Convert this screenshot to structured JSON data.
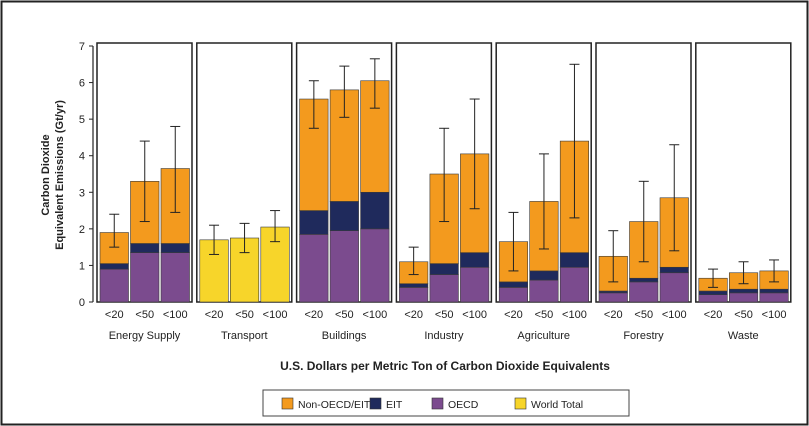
{
  "chart_data": {
    "type": "bar",
    "stacked": true,
    "ylabel_lines": [
      "Carbon Dioxide",
      "Equivalent Emissions (Gt/yr)"
    ],
    "xlabel": "U.S. Dollars per Metric Ton of Carbon Dioxide Equivalents",
    "ylim": [
      0,
      7
    ],
    "yticks": [
      "0",
      "1",
      "2",
      "3",
      "4",
      "5",
      "6",
      "7"
    ],
    "categories": [
      "<20",
      "<50",
      "<100"
    ],
    "legend": [
      {
        "key": "non_oecd",
        "label": "Non-OECD/EIT",
        "color": "#F39A1E"
      },
      {
        "key": "eit",
        "label": "EIT",
        "color": "#1F2A5C"
      },
      {
        "key": "oecd",
        "label": "OECD",
        "color": "#7B4B8E"
      },
      {
        "key": "world",
        "label": "World Total",
        "color": "#F7D52A"
      }
    ],
    "sectors": [
      {
        "name": "Energy Supply",
        "bars": [
          {
            "oecd": 0.9,
            "eit": 0.15,
            "non_oecd": 0.85,
            "total": 1.9,
            "err": [
              1.5,
              2.4
            ]
          },
          {
            "oecd": 1.35,
            "eit": 0.25,
            "non_oecd": 1.7,
            "total": 3.3,
            "err": [
              2.2,
              4.4
            ]
          },
          {
            "oecd": 1.35,
            "eit": 0.25,
            "non_oecd": 2.05,
            "total": 3.65,
            "err": [
              2.45,
              4.8
            ]
          }
        ]
      },
      {
        "name": "Transport",
        "bars": [
          {
            "world": 1.7,
            "total": 1.7,
            "err": [
              1.3,
              2.1
            ]
          },
          {
            "world": 1.75,
            "total": 1.75,
            "err": [
              1.35,
              2.15
            ]
          },
          {
            "world": 2.05,
            "total": 2.05,
            "err": [
              1.65,
              2.5
            ]
          }
        ]
      },
      {
        "name": "Buildings",
        "bars": [
          {
            "oecd": 1.85,
            "eit": 0.65,
            "non_oecd": 3.05,
            "total": 5.55,
            "err": [
              4.75,
              6.05
            ]
          },
          {
            "oecd": 1.95,
            "eit": 0.8,
            "non_oecd": 3.05,
            "total": 5.8,
            "err": [
              5.05,
              6.45
            ]
          },
          {
            "oecd": 2.0,
            "eit": 1.0,
            "non_oecd": 3.05,
            "total": 6.05,
            "err": [
              5.3,
              6.65
            ]
          }
        ]
      },
      {
        "name": "Industry",
        "bars": [
          {
            "oecd": 0.4,
            "eit": 0.1,
            "non_oecd": 0.6,
            "total": 1.1,
            "err": [
              0.75,
              1.5
            ]
          },
          {
            "oecd": 0.75,
            "eit": 0.3,
            "non_oecd": 2.45,
            "total": 3.5,
            "err": [
              2.2,
              4.75
            ]
          },
          {
            "oecd": 0.95,
            "eit": 0.4,
            "non_oecd": 2.7,
            "total": 4.05,
            "err": [
              2.55,
              5.55
            ]
          }
        ]
      },
      {
        "name": "Agriculture",
        "bars": [
          {
            "oecd": 0.4,
            "eit": 0.15,
            "non_oecd": 1.1,
            "total": 1.65,
            "err": [
              0.85,
              2.45
            ]
          },
          {
            "oecd": 0.6,
            "eit": 0.25,
            "non_oecd": 1.9,
            "total": 2.75,
            "err": [
              1.45,
              4.05
            ]
          },
          {
            "oecd": 0.95,
            "eit": 0.4,
            "non_oecd": 3.05,
            "total": 4.4,
            "err": [
              2.3,
              6.5
            ]
          }
        ]
      },
      {
        "name": "Forestry",
        "bars": [
          {
            "oecd": 0.25,
            "eit": 0.05,
            "non_oecd": 0.95,
            "total": 1.25,
            "err": [
              0.55,
              1.95
            ]
          },
          {
            "oecd": 0.55,
            "eit": 0.1,
            "non_oecd": 1.55,
            "total": 2.2,
            "err": [
              1.1,
              3.3
            ]
          },
          {
            "oecd": 0.8,
            "eit": 0.15,
            "non_oecd": 1.9,
            "total": 2.85,
            "err": [
              1.4,
              4.3
            ]
          }
        ]
      },
      {
        "name": "Waste",
        "bars": [
          {
            "oecd": 0.2,
            "eit": 0.1,
            "non_oecd": 0.35,
            "total": 0.65,
            "err": [
              0.4,
              0.9
            ]
          },
          {
            "oecd": 0.25,
            "eit": 0.1,
            "non_oecd": 0.45,
            "total": 0.8,
            "err": [
              0.5,
              1.1
            ]
          },
          {
            "oecd": 0.25,
            "eit": 0.1,
            "non_oecd": 0.5,
            "total": 0.85,
            "err": [
              0.55,
              1.15
            ]
          }
        ]
      }
    ]
  }
}
